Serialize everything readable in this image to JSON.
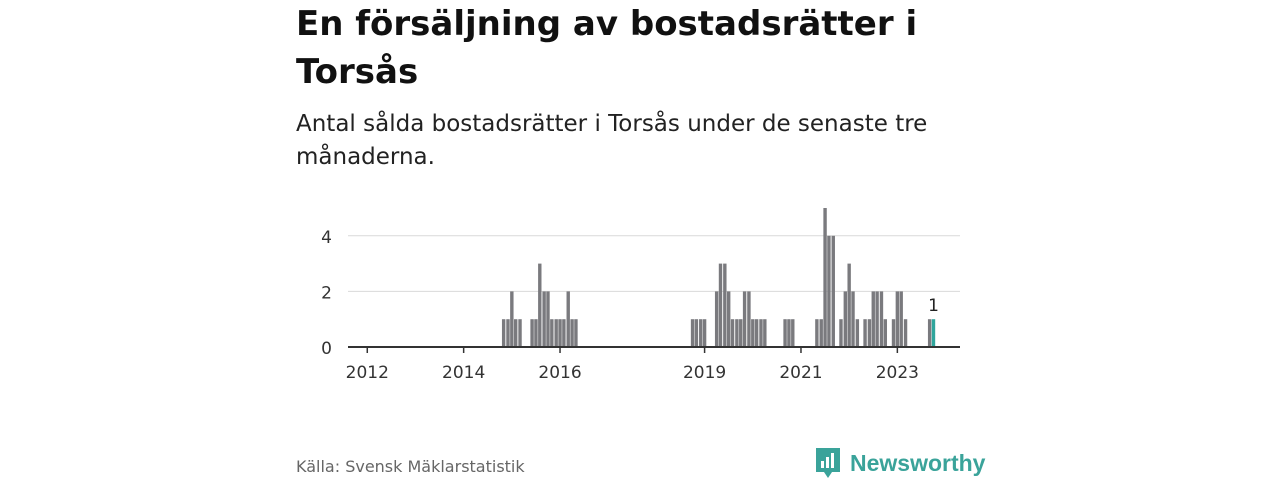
{
  "header": {
    "title": "En försäljning av bostadsrätter i Torsås",
    "subtitle": "Antal sålda bostadsrätter i Torsås under de senaste tre månaderna."
  },
  "footer": {
    "source": "Källa: Svensk Mäklarstatistik",
    "brand": "Newsworthy"
  },
  "colors": {
    "bar": "#7a7a7e",
    "highlight": "#2fa59c",
    "brand": "#3aa39a",
    "grid": "#d9d9d9"
  },
  "chart_data": {
    "type": "bar",
    "title": "Antal sålda bostadsrätter i Torsås",
    "xlabel": "",
    "ylabel": "",
    "ylim": [
      0,
      5
    ],
    "yticks": [
      0,
      2,
      4
    ],
    "xticks": [
      {
        "label": "2012",
        "x": 2012.0
      },
      {
        "label": "2014",
        "x": 2014.0
      },
      {
        "label": "2016",
        "x": 2016.0
      },
      {
        "label": "2019",
        "x": 2019.0
      },
      {
        "label": "2021",
        "x": 2021.0
      },
      {
        "label": "2023",
        "x": 2023.0
      }
    ],
    "highlight_label": "1",
    "series": [
      {
        "name": "Sålda bostadsrätter",
        "points": [
          [
            2014.83,
            1
          ],
          [
            2014.92,
            1
          ],
          [
            2015.0,
            2
          ],
          [
            2015.08,
            1
          ],
          [
            2015.17,
            1
          ],
          [
            2015.42,
            1
          ],
          [
            2015.5,
            1
          ],
          [
            2015.58,
            3
          ],
          [
            2015.67,
            2
          ],
          [
            2015.75,
            2
          ],
          [
            2015.83,
            1
          ],
          [
            2015.92,
            1
          ],
          [
            2016.0,
            1
          ],
          [
            2016.08,
            1
          ],
          [
            2016.17,
            2
          ],
          [
            2016.25,
            1
          ],
          [
            2016.33,
            1
          ],
          [
            2018.75,
            1
          ],
          [
            2018.83,
            1
          ],
          [
            2018.92,
            1
          ],
          [
            2019.0,
            1
          ],
          [
            2019.25,
            2
          ],
          [
            2019.33,
            3
          ],
          [
            2019.42,
            3
          ],
          [
            2019.5,
            2
          ],
          [
            2019.58,
            1
          ],
          [
            2019.67,
            1
          ],
          [
            2019.75,
            1
          ],
          [
            2019.83,
            2
          ],
          [
            2019.92,
            2
          ],
          [
            2020.0,
            1
          ],
          [
            2020.08,
            1
          ],
          [
            2020.17,
            1
          ],
          [
            2020.25,
            1
          ],
          [
            2020.67,
            1
          ],
          [
            2020.75,
            1
          ],
          [
            2020.83,
            1
          ],
          [
            2021.33,
            1
          ],
          [
            2021.42,
            1
          ],
          [
            2021.5,
            5
          ],
          [
            2021.58,
            4
          ],
          [
            2021.67,
            4
          ],
          [
            2021.83,
            1
          ],
          [
            2021.92,
            2
          ],
          [
            2022.0,
            3
          ],
          [
            2022.08,
            2
          ],
          [
            2022.17,
            1
          ],
          [
            2022.33,
            1
          ],
          [
            2022.42,
            1
          ],
          [
            2022.5,
            2
          ],
          [
            2022.58,
            2
          ],
          [
            2022.67,
            2
          ],
          [
            2022.75,
            1
          ],
          [
            2022.92,
            1
          ],
          [
            2023.0,
            2
          ],
          [
            2023.08,
            2
          ],
          [
            2023.17,
            1
          ],
          [
            2023.67,
            1
          ],
          [
            2023.75,
            1
          ]
        ]
      }
    ]
  }
}
